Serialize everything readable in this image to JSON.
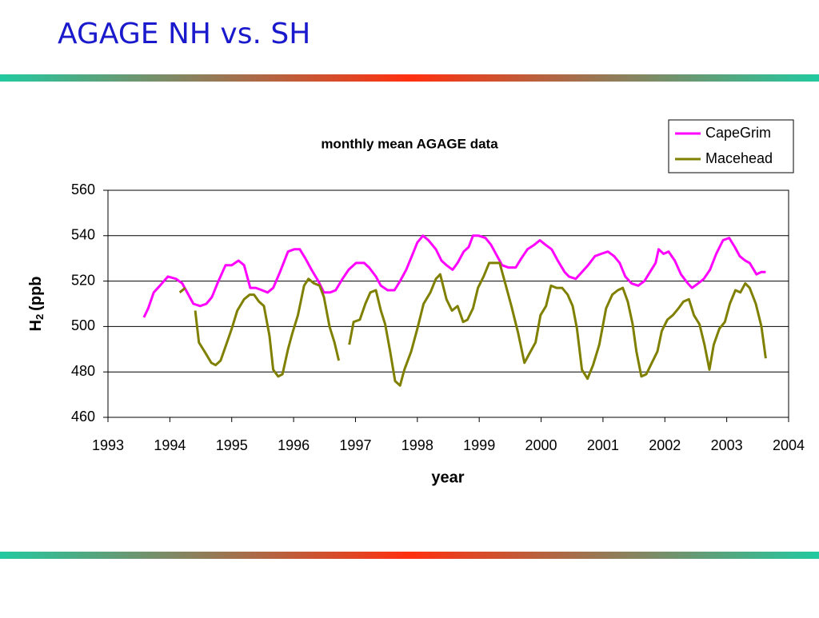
{
  "slide_title": "AGAGE NH vs. SH",
  "chart_data": {
    "type": "line",
    "title": "monthly mean AGAGE data",
    "xlabel": "year",
    "ylabel": {
      "main": "H",
      "sub": "2",
      "rest": "(ppb"
    },
    "xlim": [
      1993,
      2004
    ],
    "xticks": [
      1993,
      1994,
      1995,
      1996,
      1997,
      1998,
      1999,
      2000,
      2001,
      2002,
      2003,
      2004
    ],
    "ylim": [
      460,
      560
    ],
    "yticks": [
      460,
      480,
      500,
      520,
      540,
      560
    ],
    "grid": true,
    "legend": "top-right",
    "series": [
      {
        "name": "CapeGrim",
        "color": "#ff00ff",
        "x": [
          1993.58,
          1993.65,
          1993.74,
          1993.84,
          1993.97,
          1994.1,
          1994.2,
          1994.3,
          1994.38,
          1994.49,
          1994.59,
          1994.68,
          1994.77,
          1994.9,
          1995.0,
          1995.11,
          1995.2,
          1995.3,
          1995.39,
          1995.49,
          1995.58,
          1995.67,
          1995.78,
          1995.91,
          1996.01,
          1996.1,
          1996.19,
          1996.29,
          1996.4,
          1996.49,
          1996.59,
          1996.68,
          1996.79,
          1996.89,
          1997.01,
          1997.14,
          1997.22,
          1997.33,
          1997.41,
          1997.52,
          1997.63,
          1997.72,
          1997.82,
          1997.91,
          1998.0,
          1998.09,
          1998.18,
          1998.3,
          1998.39,
          1998.47,
          1998.57,
          1998.65,
          1998.75,
          1998.83,
          1998.9,
          1998.99,
          1999.1,
          1999.19,
          1999.29,
          1999.37,
          1999.47,
          1999.59,
          1999.68,
          1999.78,
          1999.89,
          1999.98,
          2000.07,
          2000.17,
          2000.27,
          2000.38,
          2000.45,
          2000.56,
          2000.66,
          2000.76,
          2000.87,
          2000.97,
          2001.08,
          2001.18,
          2001.27,
          2001.36,
          2001.46,
          2001.57,
          2001.67,
          2001.76,
          2001.85,
          2001.9,
          2001.98,
          2002.06,
          2002.16,
          2002.26,
          2002.37,
          2002.44,
          2002.54,
          2002.63,
          2002.73,
          2002.83,
          2002.94,
          2003.04,
          2003.13,
          2003.21,
          2003.3,
          2003.37,
          2003.48,
          2003.56,
          2003.63
        ],
        "values": [
          504,
          508,
          515,
          518,
          522,
          521,
          519,
          514,
          510,
          509,
          510,
          513,
          519,
          527,
          527,
          529,
          527,
          517,
          517,
          516,
          515,
          517,
          524,
          533,
          534,
          534,
          530,
          525,
          520,
          515,
          515,
          516,
          521,
          525,
          528,
          528,
          526,
          522,
          518,
          516,
          516,
          520,
          525,
          531,
          537,
          540,
          538,
          534,
          529,
          527,
          525,
          528,
          533,
          535,
          540,
          540,
          539,
          536,
          531,
          527,
          526,
          526,
          530,
          534,
          536,
          538,
          536,
          534,
          529,
          524,
          522,
          521,
          524,
          527,
          531,
          532,
          533,
          531,
          528,
          522,
          519,
          518,
          520,
          524,
          528,
          534,
          532,
          533,
          529,
          523,
          519,
          517,
          519,
          521,
          525,
          532,
          538,
          539,
          535,
          531,
          529,
          528,
          523,
          524,
          524
        ]
      },
      {
        "name": "Macehead",
        "color": "#808000",
        "x": [
          1994.16,
          1994.25,
          1994.33,
          1994.41,
          1994.47,
          1994.56,
          1994.67,
          1994.74,
          1994.82,
          1994.91,
          1995.0,
          1995.09,
          1995.2,
          1995.29,
          1995.36,
          1995.44,
          1995.52,
          1995.61,
          1995.67,
          1995.75,
          1995.82,
          1995.91,
          1995.98,
          1996.07,
          1996.17,
          1996.24,
          1996.33,
          1996.42,
          1996.49,
          1996.58,
          1996.66,
          1996.73,
          1996.82,
          1996.9,
          1996.97,
          1997.07,
          1997.16,
          1997.24,
          1997.33,
          1997.41,
          1997.48,
          1997.56,
          1997.64,
          1997.72,
          1997.79,
          1997.9,
          1998.0,
          1998.1,
          1998.21,
          1998.3,
          1998.37,
          1998.47,
          1998.56,
          1998.65,
          1998.74,
          1998.81,
          1998.9,
          1998.98,
          1999.07,
          1999.16,
          1999.24,
          1999.33,
          1999.42,
          1999.52,
          1999.63,
          1999.73,
          1999.81,
          1999.91,
          1999.99,
          2000.08,
          2000.16,
          2000.25,
          2000.34,
          2000.43,
          2000.51,
          2000.58,
          2000.66,
          2000.75,
          2000.84,
          2000.94,
          2001.05,
          2001.15,
          2001.24,
          2001.32,
          2001.4,
          2001.48,
          2001.54,
          2001.62,
          2001.7,
          2001.79,
          2001.88,
          2001.95,
          2002.04,
          2002.13,
          2002.22,
          2002.3,
          2002.39,
          2002.47,
          2002.56,
          2002.64,
          2002.72,
          2002.79,
          2002.88,
          2002.97,
          2003.05,
          2003.14,
          2003.22,
          2003.3,
          2003.37,
          2003.47,
          2003.56,
          2003.63
        ],
        "values": [
          515,
          517,
          null,
          507,
          493,
          489,
          484,
          483,
          485,
          492,
          499,
          507,
          512,
          514,
          514,
          511,
          509,
          496,
          481,
          478,
          479,
          490,
          497,
          505,
          518,
          521,
          519,
          518,
          513,
          500,
          493,
          485,
          null,
          492,
          502,
          503,
          510,
          515,
          516,
          507,
          501,
          489,
          476,
          474,
          481,
          489,
          499,
          510,
          515,
          521,
          523,
          512,
          507,
          509,
          502,
          503,
          508,
          517,
          522,
          528,
          528,
          528,
          519,
          509,
          497,
          484,
          488,
          493,
          505,
          509,
          518,
          517,
          517,
          514,
          509,
          499,
          481,
          477,
          483,
          492,
          508,
          514,
          516,
          517,
          511,
          501,
          489,
          478,
          479,
          484,
          489,
          498,
          503,
          505,
          508,
          511,
          512,
          505,
          501,
          492,
          481,
          492,
          499,
          502,
          510,
          516,
          515,
          519,
          517,
          510,
          500,
          486
        ]
      }
    ]
  }
}
